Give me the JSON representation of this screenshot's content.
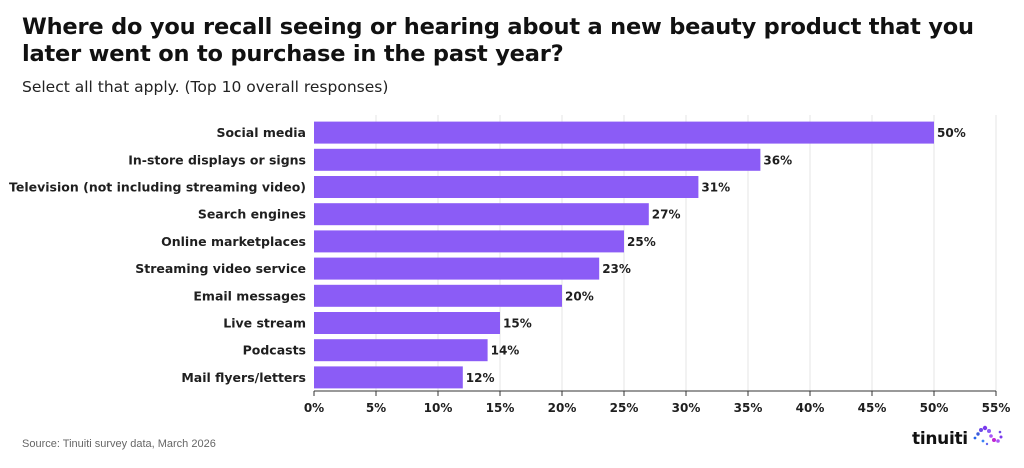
{
  "title": "Where do you recall seeing or hearing about a new beauty product that you later went on to purchase in the past year?",
  "subtitle": "Select all that apply. (Top 10 overall responses)",
  "source": "Source: Tinuiti survey data, March 2026",
  "brand": "tinuiti",
  "colors": {
    "bar": "#8b5cf6",
    "grid": "#e6e6e6",
    "axis": "#333333"
  },
  "chart_data": {
    "type": "bar",
    "orientation": "horizontal",
    "categories": [
      "Social media",
      "In-store displays or signs",
      "Television (not including streaming video)",
      "Search engines",
      "Online marketplaces",
      "Streaming video service",
      "Email messages",
      "Live stream",
      "Podcasts",
      "Mail flyers/letters"
    ],
    "values": [
      50,
      36,
      31,
      27,
      25,
      23,
      20,
      15,
      14,
      12
    ],
    "value_labels": [
      "50%",
      "36%",
      "31%",
      "27%",
      "25%",
      "23%",
      "20%",
      "15%",
      "14%",
      "12%"
    ],
    "xlim": [
      0,
      55
    ],
    "xticks": [
      0,
      5,
      10,
      15,
      20,
      25,
      30,
      35,
      40,
      45,
      50,
      55
    ],
    "xtick_labels": [
      "0%",
      "5%",
      "10%",
      "15%",
      "20%",
      "25%",
      "30%",
      "35%",
      "40%",
      "45%",
      "50%",
      "55%"
    ],
    "grid": true,
    "legend": "none"
  }
}
